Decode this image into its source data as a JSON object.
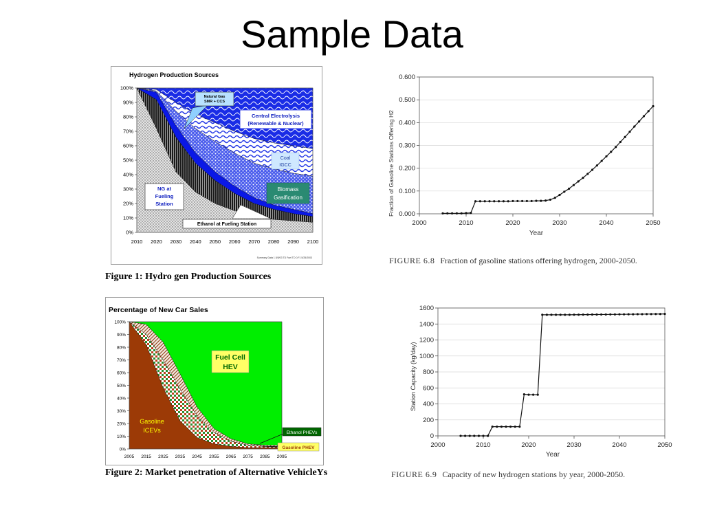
{
  "slide": {
    "title": "Sample Data"
  },
  "fig1": {
    "caption": "Figure 1: Hydro gen Production Sources",
    "source_note": "Summary Data 1 8/5/03 TD Fuel TD 0.F1 5/25/2003",
    "annotations": {
      "natural_gas": [
        "Natural Gas",
        "SMR + CCS"
      ],
      "central": [
        "Central Electrolysis",
        "(Renewable & Nuclear)"
      ],
      "coal": [
        "Coal",
        "IGCC"
      ],
      "biomass": [
        "Biomass",
        "Gasification"
      ],
      "ng_fueling": [
        "NG at",
        "Fueling",
        "Station"
      ],
      "ethanol": "Ethanol at Fueling Station"
    }
  },
  "fig2": {
    "caption": "Figure 2: Market penetration of Alternative VehicleYs",
    "annotations": {
      "fuel_cell": [
        "Fuel Cell",
        "HEV"
      ],
      "gasoline_icev": [
        "Gasoline",
        "ICEVs"
      ],
      "ethanol_phev": "Ethanol PHEVs",
      "gasoline_phev": "Gasoline PHEV"
    }
  },
  "fig3": {
    "figure_label": "FIGURE 6.8",
    "caption": "Fraction of gasoline stations offering hydrogen, 2000-2050."
  },
  "fig4": {
    "figure_label": "FIGURE 6.9",
    "caption": "Capacity of new hydrogen stations by year, 2000-2050."
  },
  "chart_data": [
    {
      "type": "area",
      "title": "Hydrogen Production Sources",
      "xlabel": "",
      "ylabel": "",
      "x": [
        2010,
        2020,
        2030,
        2040,
        2050,
        2060,
        2070,
        2080,
        2090,
        2100
      ],
      "xlim": [
        2010,
        2100
      ],
      "ylim": [
        0,
        100
      ],
      "y_ticks": [
        "0%",
        "10%",
        "20%",
        "30%",
        "40%",
        "50%",
        "60%",
        "70%",
        "80%",
        "90%",
        "100%"
      ],
      "stacked": true,
      "series": [
        {
          "name": "NG at Fueling Station",
          "values": [
            100,
            72,
            42,
            28,
            20,
            15,
            11,
            9,
            8,
            7
          ]
        },
        {
          "name": "Ethanol at Fueling Station",
          "values": [
            0,
            20,
            24,
            20,
            16,
            12,
            9,
            7,
            5,
            4
          ]
        },
        {
          "name": "Natural Gas SMR + CCS",
          "values": [
            0,
            5,
            8,
            7,
            6,
            5,
            4,
            3,
            3,
            2
          ]
        },
        {
          "name": "Biomass Gasification",
          "values": [
            0,
            1,
            10,
            17,
            21,
            23,
            24,
            25,
            25,
            26
          ]
        },
        {
          "name": "Coal IGCC",
          "values": [
            0,
            1,
            6,
            10,
            13,
            15,
            17,
            18,
            19,
            19
          ]
        },
        {
          "name": "Central Electrolysis (Renewable & Nuclear)",
          "values": [
            0,
            1,
            10,
            18,
            24,
            30,
            35,
            38,
            40,
            42
          ]
        }
      ],
      "colors": {
        "ng": "#d8d8d8",
        "ethanol": "#3a3a3a",
        "smr": "#0a14e6",
        "biomass": "#7d8ee8",
        "coal": "#c6d0f6",
        "central": "#1e28e0"
      }
    },
    {
      "type": "area",
      "title": "Percentage of New Car Sales",
      "xlabel": "",
      "ylabel": "",
      "x": [
        2005,
        2015,
        2025,
        2035,
        2045,
        2055,
        2065,
        2075,
        2085,
        2095
      ],
      "xlim": [
        2005,
        2095
      ],
      "ylim": [
        0,
        100
      ],
      "y_ticks": [
        "0%",
        "10%",
        "20%",
        "30%",
        "40%",
        "50%",
        "60%",
        "70%",
        "80%",
        "90%",
        "100%"
      ],
      "stacked": true,
      "series": [
        {
          "name": "Gasoline ICEVs",
          "values": [
            100,
            82,
            48,
            22,
            9,
            4,
            2,
            1,
            1,
            1
          ]
        },
        {
          "name": "Gasoline PHEV",
          "values": [
            0,
            8,
            14,
            12,
            7,
            3,
            2,
            1,
            1,
            1
          ]
        },
        {
          "name": "Ethanol PHEVs",
          "values": [
            0,
            8,
            22,
            25,
            17,
            9,
            4,
            2,
            1,
            1
          ]
        },
        {
          "name": "Fuel Cell HEV",
          "values": [
            0,
            2,
            16,
            41,
            67,
            84,
            92,
            96,
            97,
            97
          ]
        }
      ],
      "colors": {
        "icev": "#9c3a06",
        "gphev": "#d9b8a0",
        "ephev": "#e8d2c4",
        "fchev": "#00ee00"
      }
    },
    {
      "type": "line",
      "title": "",
      "xlabel": "Year",
      "ylabel": "Fraction of Gasoline Stations Offering H2",
      "xlim": [
        2000,
        2050
      ],
      "ylim": [
        0,
        0.6
      ],
      "x_ticks": [
        2000,
        2010,
        2020,
        2030,
        2040,
        2050
      ],
      "y_ticks": [
        "0.000",
        "0.100",
        "0.200",
        "0.300",
        "0.400",
        "0.500",
        "0.600"
      ],
      "x": [
        2005,
        2006,
        2007,
        2008,
        2009,
        2010,
        2011,
        2012,
        2013,
        2014,
        2015,
        2016,
        2017,
        2018,
        2019,
        2020,
        2021,
        2022,
        2023,
        2024,
        2025,
        2026,
        2027,
        2028,
        2029,
        2030,
        2031,
        2032,
        2033,
        2034,
        2035,
        2036,
        2037,
        2038,
        2039,
        2040,
        2041,
        2042,
        2043,
        2044,
        2045,
        2046,
        2047,
        2048,
        2049,
        2050
      ],
      "y": [
        0.002,
        0.002,
        0.002,
        0.002,
        0.002,
        0.003,
        0.004,
        0.055,
        0.055,
        0.055,
        0.055,
        0.055,
        0.055,
        0.055,
        0.055,
        0.056,
        0.056,
        0.056,
        0.056,
        0.056,
        0.057,
        0.057,
        0.058,
        0.062,
        0.07,
        0.083,
        0.097,
        0.11,
        0.126,
        0.142,
        0.158,
        0.175,
        0.193,
        0.212,
        0.232,
        0.252,
        0.272,
        0.293,
        0.315,
        0.337,
        0.36,
        0.383,
        0.405,
        0.428,
        0.45,
        0.472
      ],
      "grid": true
    },
    {
      "type": "line",
      "title": "",
      "xlabel": "Year",
      "ylabel": "Station Capacity (kg/day)",
      "xlim": [
        2000,
        2050
      ],
      "ylim": [
        0,
        1600
      ],
      "x_ticks": [
        2000,
        2010,
        2020,
        2030,
        2040,
        2050
      ],
      "y_ticks": [
        "0",
        "200",
        "400",
        "600",
        "800",
        "1000",
        "1200",
        "1400",
        "1600"
      ],
      "x": [
        2005,
        2006,
        2007,
        2008,
        2009,
        2010,
        2011,
        2012,
        2013,
        2014,
        2015,
        2016,
        2017,
        2018,
        2019,
        2020,
        2021,
        2022,
        2023,
        2024,
        2025,
        2026,
        2027,
        2028,
        2029,
        2030,
        2031,
        2032,
        2033,
        2034,
        2035,
        2036,
        2037,
        2038,
        2039,
        2040,
        2041,
        2042,
        2043,
        2044,
        2045,
        2046,
        2047,
        2048,
        2049,
        2050
      ],
      "y": [
        0,
        0,
        0,
        0,
        0,
        0,
        0,
        115,
        115,
        115,
        115,
        115,
        115,
        115,
        520,
        515,
        515,
        515,
        1515,
        1515,
        1515,
        1515,
        1515,
        1515,
        1515,
        1516,
        1516,
        1517,
        1517,
        1518,
        1518,
        1519,
        1519,
        1520,
        1520,
        1521,
        1521,
        1522,
        1522,
        1523,
        1523,
        1524,
        1524,
        1525,
        1525,
        1526
      ],
      "grid": true
    }
  ]
}
